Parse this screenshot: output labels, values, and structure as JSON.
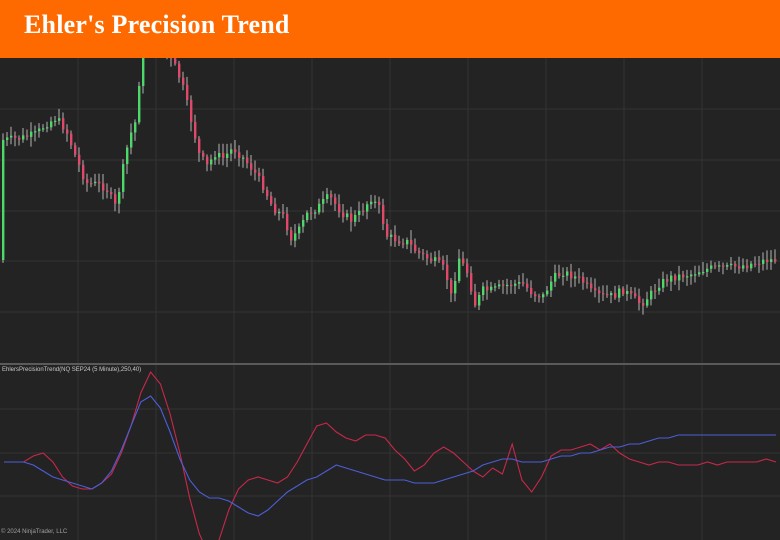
{
  "header": {
    "title": "Ehler's Precision Trend",
    "background": "#ff6a00"
  },
  "indicator": {
    "label": "EhlersPrecisionTrend(NQ SEP24 (5 Minute),250,40)"
  },
  "footer": {
    "copyright": "© 2024 NinjaTrader, LLC"
  },
  "colors": {
    "background": "#232323",
    "grid": "#333333",
    "bull": "#4fd86a",
    "bear": "#e0496a",
    "wick": "#d8d8d8",
    "trend_line": "#4c5ed8",
    "cycle_line": "#c8284a"
  },
  "chart_data": [
    {
      "type": "candlestick",
      "title": "",
      "candles": []
    },
    {
      "type": "line",
      "title": "",
      "series": [
        {
          "color": "#c8284a",
          "values": [
            0,
            0,
            0,
            0.2,
            0.3,
            0,
            -0.5,
            -0.8,
            -0.9,
            -0.9,
            -0.7,
            -0.4,
            0.3,
            1.2,
            2.3,
            3.0,
            2.6,
            1.6,
            0.3,
            -1.2,
            -2.4,
            -3.1,
            -2.6,
            -1.6,
            -0.9,
            -0.6,
            -0.5,
            -0.6,
            -0.7,
            -0.5,
            0,
            0.6,
            1.2,
            1.3,
            1.0,
            0.8,
            0.7,
            0.9,
            0.9,
            0.8,
            0.4,
            0.1,
            -0.3,
            -0.1,
            0.3,
            0.5,
            0.3,
            0.0,
            -0.3,
            -0.5,
            -0.2,
            -0.4,
            0.6,
            -0.6,
            -1.0,
            -0.5,
            0.2,
            0.4,
            0.4,
            0.5,
            0.6,
            0.4,
            0.6,
            0.3,
            0.1,
            0.0,
            -0.1,
            0.0,
            0.0,
            -0.1,
            -0.1,
            -0.1,
            0.0,
            -0.1,
            0.0,
            0.0,
            0.0,
            0.0,
            0.1,
            0.0
          ]
        },
        {
          "color": "#4c5ed8",
          "values": [
            0,
            0,
            0,
            -0.1,
            -0.3,
            -0.5,
            -0.6,
            -0.7,
            -0.8,
            -0.9,
            -0.7,
            -0.3,
            0.4,
            1.2,
            2.0,
            2.2,
            1.8,
            1.0,
            0.1,
            -0.6,
            -1.0,
            -1.2,
            -1.2,
            -1.3,
            -1.5,
            -1.7,
            -1.8,
            -1.6,
            -1.3,
            -1.0,
            -0.8,
            -0.6,
            -0.5,
            -0.3,
            -0.1,
            -0.2,
            -0.3,
            -0.4,
            -0.5,
            -0.6,
            -0.6,
            -0.6,
            -0.7,
            -0.7,
            -0.7,
            -0.6,
            -0.5,
            -0.4,
            -0.3,
            -0.1,
            0.0,
            0.1,
            0.1,
            0.0,
            0.0,
            0.0,
            0.1,
            0.2,
            0.2,
            0.3,
            0.3,
            0.4,
            0.5,
            0.5,
            0.6,
            0.6,
            0.7,
            0.8,
            0.8,
            0.9,
            0.9,
            0.9,
            0.9,
            0.9,
            0.9,
            0.9,
            0.9,
            0.9,
            0.9,
            0.9
          ]
        }
      ]
    }
  ]
}
